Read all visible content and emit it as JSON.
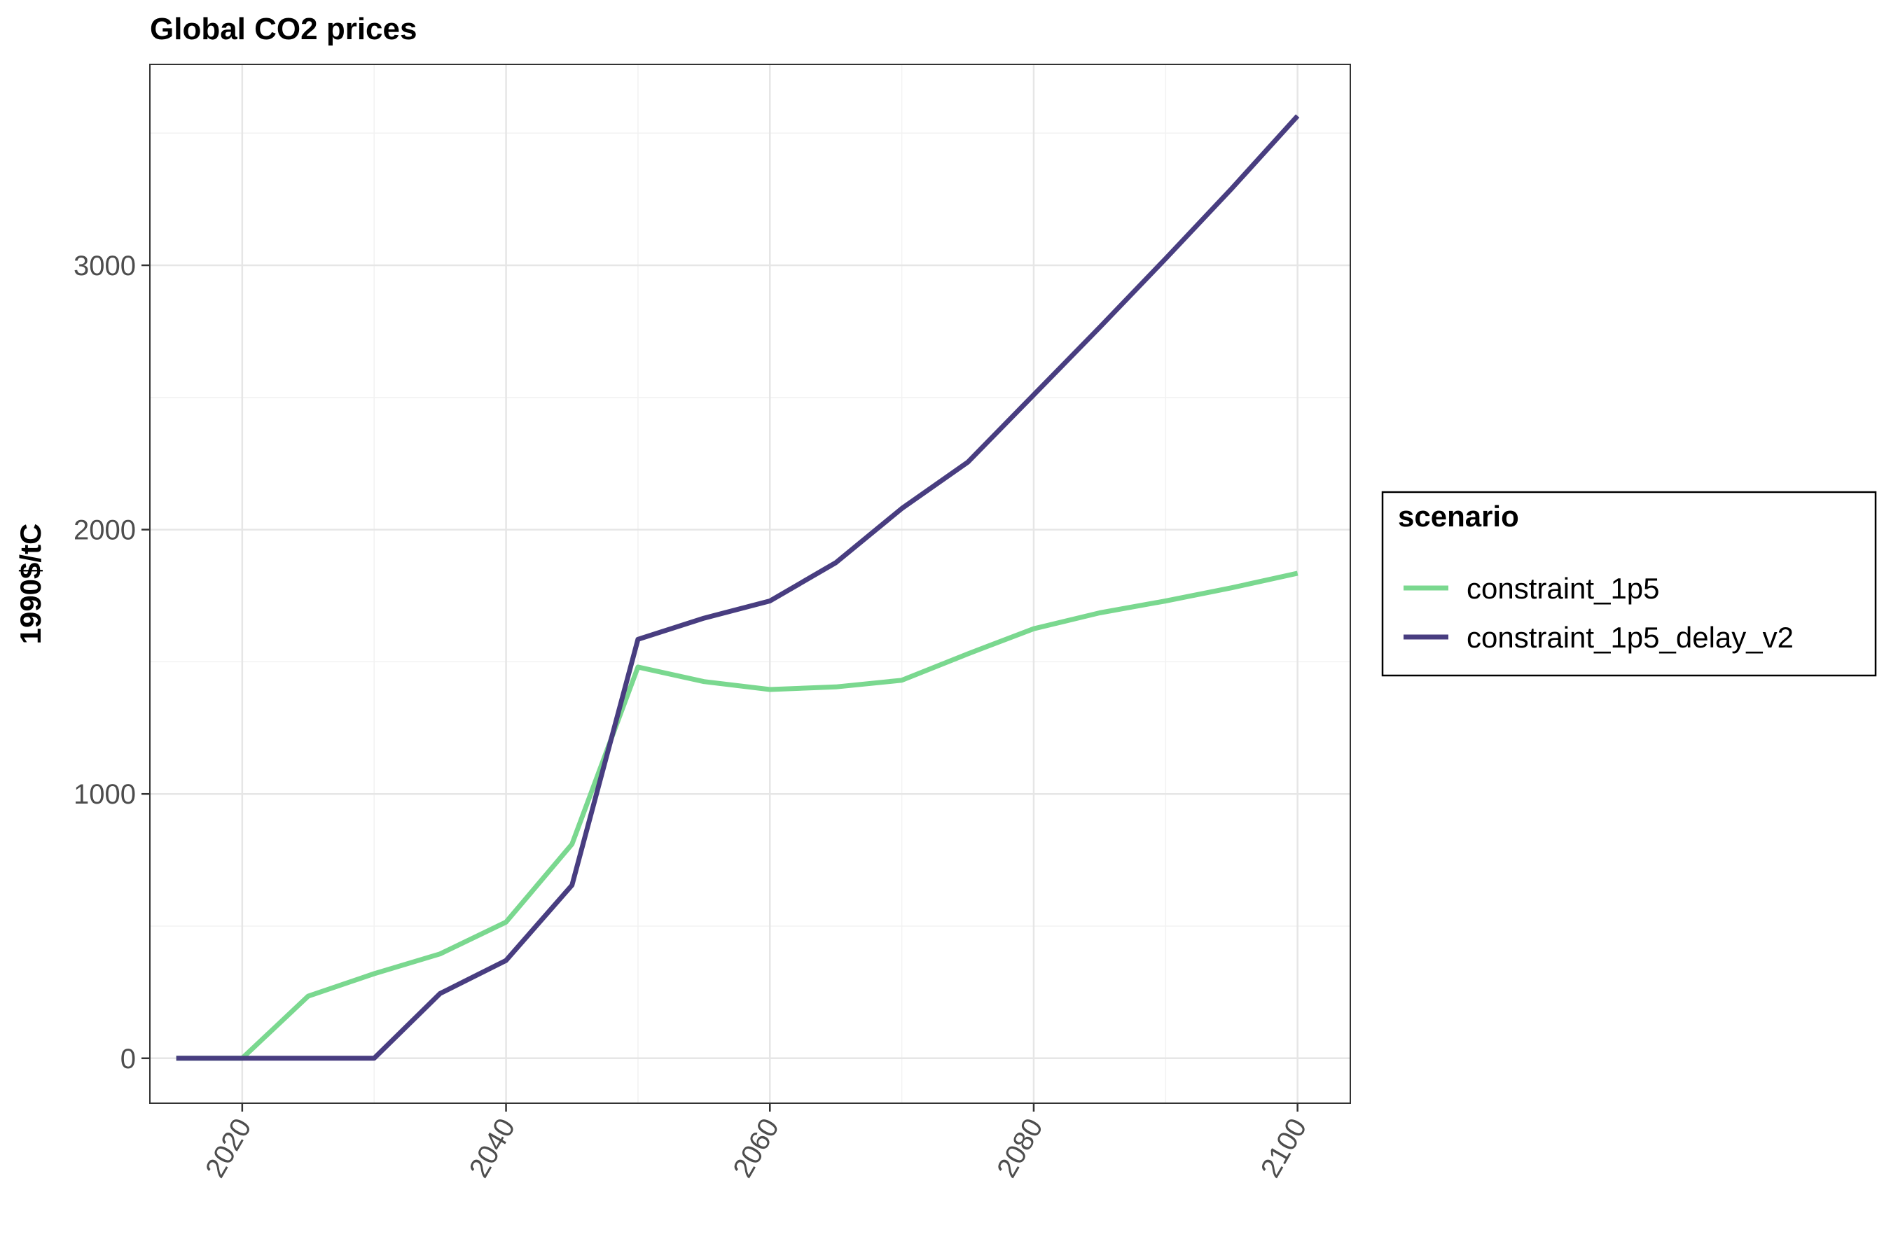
{
  "chart_data": {
    "type": "line",
    "title": "Global CO2 prices",
    "xlabel": "",
    "ylabel": "1990$/tC",
    "xlim": [
      2013,
      2104
    ],
    "ylim": [
      -170,
      3760
    ],
    "x_ticks": [
      2020,
      2040,
      2060,
      2080,
      2100
    ],
    "y_ticks": [
      0,
      1000,
      2000,
      3000
    ],
    "grid": true,
    "legend": {
      "title": "scenario",
      "position": "right"
    },
    "series": [
      {
        "name": "constraint_1p5",
        "color": "#7ad88f",
        "x": [
          2015,
          2020,
          2025,
          2030,
          2035,
          2040,
          2045,
          2050,
          2055,
          2060,
          2065,
          2070,
          2075,
          2080,
          2085,
          2090,
          2095,
          2100
        ],
        "values": [
          0,
          0,
          235,
          320,
          395,
          515,
          810,
          1480,
          1425,
          1395,
          1405,
          1430,
          1530,
          1625,
          1685,
          1730,
          1780,
          1835
        ]
      },
      {
        "name": "constraint_1p5_delay_v2",
        "color": "#483d80",
        "x": [
          2015,
          2020,
          2025,
          2030,
          2035,
          2040,
          2045,
          2050,
          2055,
          2060,
          2065,
          2070,
          2075,
          2080,
          2085,
          2090,
          2095,
          2100
        ],
        "values": [
          0,
          0,
          0,
          0,
          245,
          370,
          655,
          1585,
          1665,
          1730,
          1875,
          2080,
          2255,
          2510,
          2765,
          3025,
          3290,
          3565
        ]
      }
    ]
  }
}
